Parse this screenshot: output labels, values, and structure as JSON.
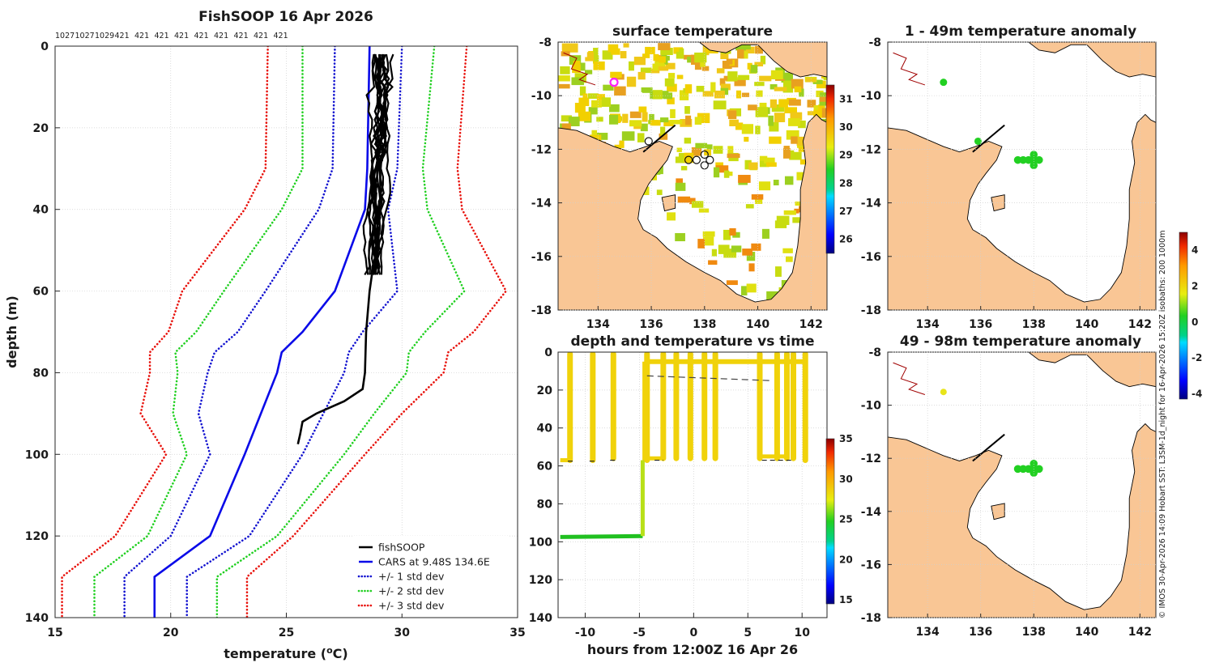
{
  "chart_data": [
    {
      "type": "line",
      "title": "FishSOOP 16 Apr 2026",
      "xlabel": "temperature (°C)",
      "ylabel": "depth (m)",
      "xlim": [
        15,
        35
      ],
      "ylim": [
        140,
        0
      ],
      "xticks": [
        "15",
        "20",
        "25",
        "30",
        "35"
      ],
      "yticks": [
        "0",
        "20",
        "40",
        "60",
        "80",
        "100",
        "120",
        "140"
      ],
      "top_labels": [
        "1027",
        "1027",
        "1029",
        "421",
        "421",
        "421",
        "421",
        "421",
        "421",
        "421",
        "421",
        "421"
      ],
      "depths": [
        0,
        30,
        40,
        60,
        70,
        75,
        80,
        90,
        100,
        120,
        130,
        140
      ],
      "series": [
        {
          "name": "+/- 3 std dev",
          "style": "dotted",
          "color": "#e8120c",
          "values": [
            [
              24.2,
              24.1,
              23.2,
              20.5,
              19.9,
              19.1,
              19.1,
              18.7,
              19.8,
              17.6,
              15.3,
              15.3
            ],
            [
              32.8,
              32.4,
              32.6,
              34.5,
              33.1,
              32.0,
              31.8,
              30.0,
              28.4,
              25.3,
              23.3,
              23.3
            ]
          ]
        },
        {
          "name": "+/- 2 std dev",
          "style": "dotted",
          "color": "#22d022",
          "values": [
            [
              25.7,
              25.7,
              24.8,
              22.3,
              21.1,
              20.2,
              20.3,
              20.1,
              20.7,
              19.0,
              16.7,
              16.7
            ],
            [
              31.4,
              30.9,
              31.1,
              32.7,
              31.0,
              30.3,
              30.2,
              28.8,
              27.5,
              24.6,
              22.0,
              22.0
            ]
          ]
        },
        {
          "name": "+/- 1 std dev",
          "style": "dotted",
          "color": "#1414d0",
          "values": [
            [
              27.1,
              27.0,
              26.4,
              24.1,
              22.9,
              21.9,
              21.6,
              21.2,
              21.7,
              20.0,
              18.0,
              18.0
            ],
            [
              30.0,
              29.8,
              29.4,
              29.8,
              28.3,
              27.7,
              27.5,
              26.6,
              25.7,
              23.4,
              20.7,
              20.7
            ]
          ]
        },
        {
          "name": "CARS at 9.48S 134.6E",
          "style": "solid",
          "color": "#0a0ae8",
          "values": [
            [
              28.6,
              28.5,
              28.4,
              27.1,
              25.7,
              24.8,
              24.6,
              23.9,
              23.2,
              21.7,
              19.3,
              19.3
            ]
          ]
        },
        {
          "name": "fishSOOP",
          "style": "solid",
          "color": "#000000",
          "values": []
        }
      ],
      "legend": [
        "fishSOOP",
        "CARS at 9.48S 134.6E",
        "+/- 1 std dev",
        "+/- 2 std dev",
        "+/- 3 std dev"
      ],
      "legend_position": "bottom-right"
    },
    {
      "type": "heatmap",
      "title": "surface temperature",
      "xticks": [
        "134",
        "136",
        "138",
        "140",
        "142"
      ],
      "yticks": [
        "-8",
        "-10",
        "-12",
        "-14",
        "-16",
        "-18"
      ],
      "colorbar_ticks": [
        "26",
        "27",
        "28",
        "29",
        "30",
        "31"
      ],
      "colorbar_range": [
        25.5,
        31.5
      ]
    },
    {
      "type": "scatter",
      "title": "depth and temperature vs time",
      "xlabel": "hours from 12:00Z 16 Apr 26",
      "xticks": [
        "-10",
        "-5",
        "0",
        "5",
        "10"
      ],
      "yticks": [
        "0",
        "20",
        "40",
        "60",
        "80",
        "100",
        "120",
        "140"
      ],
      "xlim": [
        -12.5,
        12.3
      ],
      "ylim": [
        140,
        0
      ],
      "colorbar_ticks": [
        "15",
        "20",
        "25",
        "30",
        "35"
      ],
      "colorbar_range": [
        14.5,
        35
      ],
      "casts_hours": [
        -11.4,
        -9.3,
        -7.4,
        -4.3,
        -2.8,
        -1.6,
        -0.3,
        1.0,
        2.0,
        6.1,
        7.7,
        8.6,
        9.2,
        10.3
      ],
      "cast_depths": [
        57,
        57,
        56,
        57,
        56,
        56,
        56,
        56,
        56,
        56,
        56,
        56,
        56,
        57
      ]
    },
    {
      "type": "scatter",
      "title": "1 - 49m temperature anomaly",
      "xticks": [
        "134",
        "136",
        "138",
        "140",
        "142"
      ],
      "yticks": [
        "-8",
        "-10",
        "-12",
        "-14",
        "-16",
        "-18"
      ],
      "colorbar_ticks": [
        "-4",
        "-2",
        "0",
        "2",
        "4"
      ],
      "colorbar_range": [
        -4.3,
        5
      ]
    },
    {
      "type": "scatter",
      "title": "49 - 98m temperature anomaly",
      "xticks": [
        "134",
        "136",
        "138",
        "140",
        "142"
      ],
      "yticks": [
        "-8",
        "-10",
        "-12",
        "-14",
        "-16",
        "-18"
      ]
    }
  ],
  "credit": "© IMOS 30-Apr-2026 14:09 Hobart SST: L3SM-1d_night for 16-Apr-2026 15:20Z isobaths: 200  1000m",
  "colors": {
    "land": "#f9c695",
    "ocean": "#ffffff"
  }
}
